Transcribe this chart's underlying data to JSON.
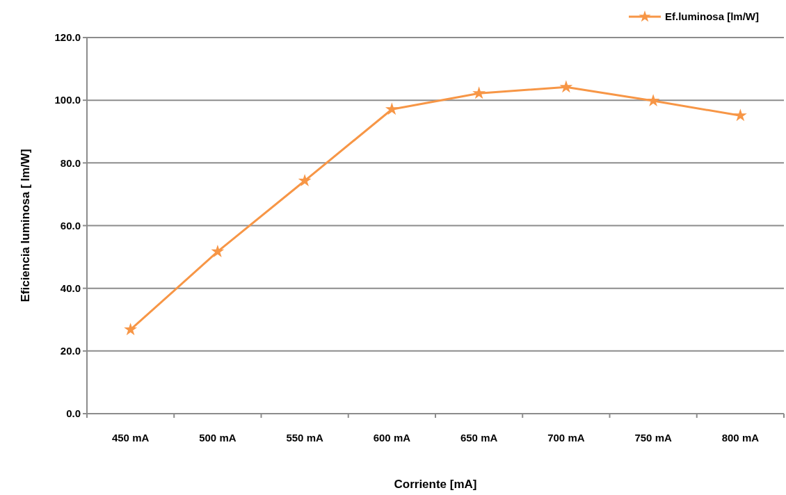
{
  "chart_data": {
    "type": "line",
    "xlabel": "Corriente [mA]",
    "ylabel": "Eficiencia luminosa [ lm/W]",
    "categories": [
      "450 mA",
      "500 mA",
      "550 mA",
      "600 mA",
      "650 mA",
      "700 mA",
      "750 mA",
      "800 mA"
    ],
    "series": [
      {
        "name": "Ef.luminosa [lm/W]",
        "color": "#f79646",
        "values": [
          26.8,
          51.7,
          74.3,
          97.1,
          102.2,
          104.2,
          99.8,
          95.1
        ]
      }
    ],
    "ylim": [
      0,
      120
    ],
    "yticks": [
      {
        "value": 0,
        "label": "0.0"
      },
      {
        "value": 20,
        "label": "20.0"
      },
      {
        "value": 40,
        "label": "40.0"
      },
      {
        "value": 60,
        "label": "60.0"
      },
      {
        "value": 80,
        "label": "80.0"
      },
      {
        "value": 100,
        "label": "100.0"
      },
      {
        "value": 120,
        "label": "120.0"
      }
    ],
    "grid": "y",
    "legend": "top right",
    "marker": "star",
    "line_style": "solid"
  }
}
